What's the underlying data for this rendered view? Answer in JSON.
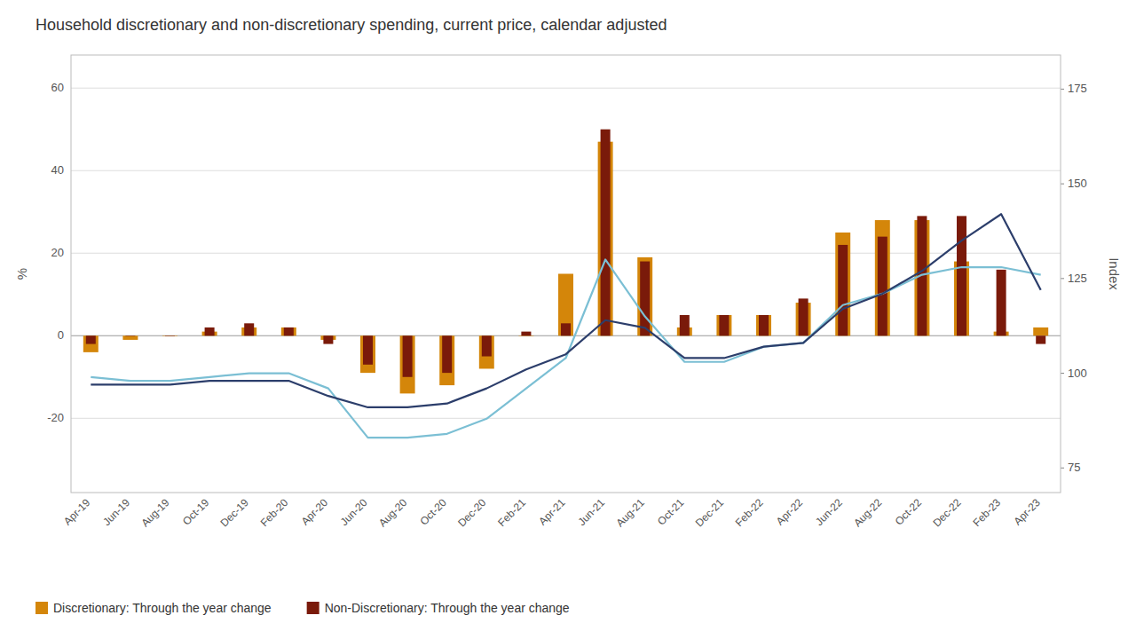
{
  "chart_data": {
    "type": "bar",
    "title": "Household discretionary and non-discretionary spending, current price, calendar adjusted",
    "y_label": "%",
    "y2_label": "Index",
    "categories": [
      "Apr-19",
      "Jun-19",
      "Aug-19",
      "Oct-19",
      "Dec-19",
      "Feb-20",
      "Apr-20",
      "Jun-20",
      "Aug-20",
      "Oct-20",
      "Dec-20",
      "Feb-21",
      "Apr-21",
      "Jun-21",
      "Aug-21",
      "Oct-21",
      "Dec-21",
      "Feb-22",
      "Apr-22",
      "Jun-22",
      "Aug-22",
      "Oct-22",
      "Dec-22",
      "Feb-23",
      "Apr-23"
    ],
    "series": [
      {
        "name": "Discretionary:   Through the year change",
        "type": "bar",
        "color": "#D4860A",
        "values": [
          -4,
          -1,
          0,
          1,
          2,
          2,
          -1,
          -9,
          -14,
          -12,
          -8,
          0,
          15,
          47,
          19,
          2,
          5,
          5,
          8,
          25,
          28,
          28,
          18,
          1,
          2
        ]
      },
      {
        "name": "Non-Discretionary:   Through the year change",
        "type": "bar",
        "color": "#7A1A0A",
        "values": [
          -2,
          0,
          0,
          2,
          3,
          2,
          -2,
          -7,
          -10,
          -9,
          -5,
          1,
          3,
          50,
          18,
          5,
          5,
          5,
          9,
          22,
          24,
          29,
          29,
          16,
          -2
        ]
      },
      {
        "type": "line",
        "axis": "y2",
        "color": "#7BBFD4",
        "values": [
          99,
          98,
          98,
          99,
          100,
          100,
          96,
          83,
          83,
          84,
          88,
          96,
          104,
          130,
          115,
          103,
          103,
          107,
          108,
          118,
          121,
          126,
          128,
          128,
          126
        ]
      },
      {
        "type": "line",
        "axis": "y2",
        "color": "#2C3E6B",
        "values": [
          97,
          97,
          97,
          98,
          98,
          98,
          94,
          91,
          91,
          92,
          96,
          101,
          105,
          114,
          112,
          104,
          104,
          107,
          108,
          117,
          121,
          127,
          135,
          142,
          122
        ]
      }
    ],
    "ylim": [
      -38,
      68
    ],
    "yticks": [
      -20,
      0,
      20,
      40,
      60
    ],
    "y2lim": [
      68.5,
      184
    ],
    "y2ticks": [
      75,
      100,
      125,
      150,
      175
    ],
    "grid": true,
    "legend": "bottom"
  }
}
